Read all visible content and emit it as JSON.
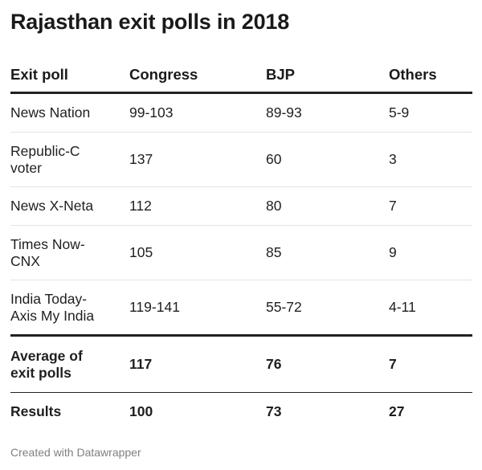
{
  "chart_data": {
    "type": "table",
    "title": "Rajasthan exit polls in 2018",
    "columns": [
      "Exit poll",
      "Congress",
      "BJP",
      "Others"
    ],
    "rows": [
      [
        "News Nation",
        "99-103",
        "89-93",
        "5-9"
      ],
      [
        "Republic-C voter",
        "137",
        "60",
        "3"
      ],
      [
        "News X-Neta",
        "112",
        "80",
        "7"
      ],
      [
        "Times Now-CNX",
        "105",
        "85",
        "9"
      ],
      [
        "India Today-Axis My India",
        "119-141",
        "55-72",
        "4-11"
      ]
    ],
    "summary_rows": [
      [
        "Average of exit polls",
        "117",
        "76",
        "7"
      ],
      [
        "Results",
        "100",
        "73",
        "27"
      ]
    ]
  },
  "footer": "Created with Datawrapper"
}
